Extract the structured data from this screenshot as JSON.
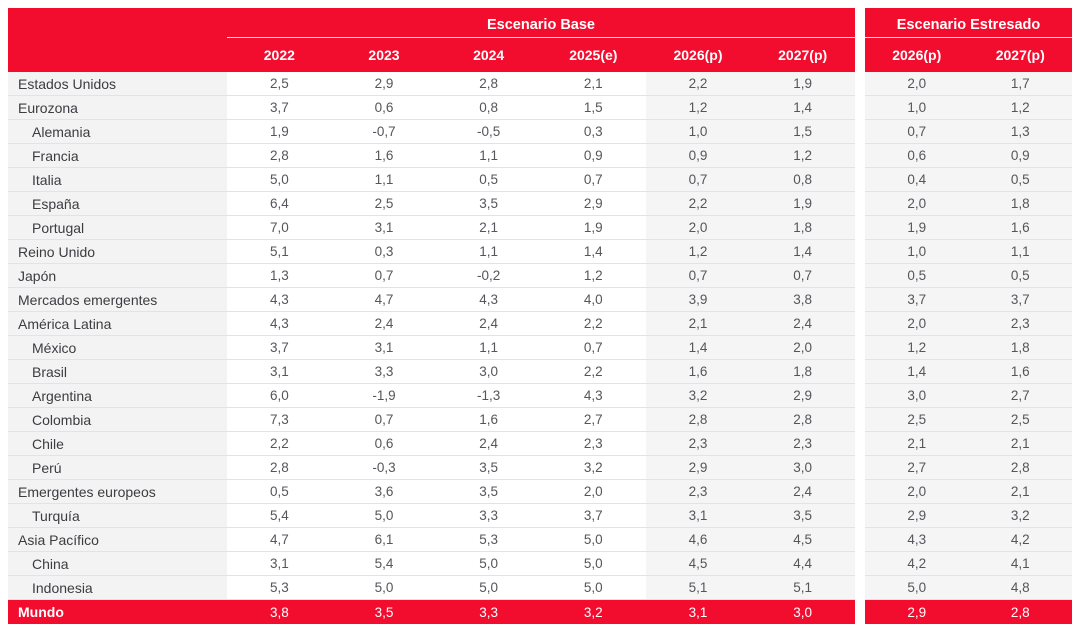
{
  "colors": {
    "accent": "#f20d2f",
    "shaded_column_bg": "#f5f5f5",
    "label_column_bg": "#f3f3f3",
    "row_border": "#e3e3e3",
    "number_text": "#54565b",
    "label_text": "#3c3c41",
    "header_text": "#ffffff"
  },
  "chart_data": {
    "type": "table",
    "title_base": "Escenario Base",
    "title_stressed": "Escenario Estresado",
    "base_columns": [
      "2022",
      "2023",
      "2024",
      "2025(e)",
      "2026(p)",
      "2027(p)"
    ],
    "stressed_columns": [
      "2026(p)",
      "2027(p)"
    ],
    "rows": [
      {
        "label": "Estados Unidos",
        "indent": false,
        "highlight": false,
        "base": [
          "2,5",
          "2,9",
          "2,8",
          "2,1",
          "2,2",
          "1,9"
        ],
        "stressed": [
          "2,0",
          "1,7"
        ]
      },
      {
        "label": "Eurozona",
        "indent": false,
        "highlight": false,
        "base": [
          "3,7",
          "0,6",
          "0,8",
          "1,5",
          "1,2",
          "1,4"
        ],
        "stressed": [
          "1,0",
          "1,2"
        ]
      },
      {
        "label": "Alemania",
        "indent": true,
        "highlight": false,
        "base": [
          "1,9",
          "-0,7",
          "-0,5",
          "0,3",
          "1,0",
          "1,5"
        ],
        "stressed": [
          "0,7",
          "1,3"
        ]
      },
      {
        "label": "Francia",
        "indent": true,
        "highlight": false,
        "base": [
          "2,8",
          "1,6",
          "1,1",
          "0,9",
          "0,9",
          "1,2"
        ],
        "stressed": [
          "0,6",
          "0,9"
        ]
      },
      {
        "label": "Italia",
        "indent": true,
        "highlight": false,
        "base": [
          "5,0",
          "1,1",
          "0,5",
          "0,7",
          "0,7",
          "0,8"
        ],
        "stressed": [
          "0,4",
          "0,5"
        ]
      },
      {
        "label": "España",
        "indent": true,
        "highlight": false,
        "base": [
          "6,4",
          "2,5",
          "3,5",
          "2,9",
          "2,2",
          "1,9"
        ],
        "stressed": [
          "2,0",
          "1,8"
        ]
      },
      {
        "label": "Portugal",
        "indent": true,
        "highlight": false,
        "base": [
          "7,0",
          "3,1",
          "2,1",
          "1,9",
          "2,0",
          "1,8"
        ],
        "stressed": [
          "1,9",
          "1,6"
        ]
      },
      {
        "label": "Reino Unido",
        "indent": false,
        "highlight": false,
        "base": [
          "5,1",
          "0,3",
          "1,1",
          "1,4",
          "1,2",
          "1,4"
        ],
        "stressed": [
          "1,0",
          "1,1"
        ]
      },
      {
        "label": "Japón",
        "indent": false,
        "highlight": false,
        "base": [
          "1,3",
          "0,7",
          "-0,2",
          "1,2",
          "0,7",
          "0,7"
        ],
        "stressed": [
          "0,5",
          "0,5"
        ]
      },
      {
        "label": "Mercados emergentes",
        "indent": false,
        "highlight": false,
        "base": [
          "4,3",
          "4,7",
          "4,3",
          "4,0",
          "3,9",
          "3,8"
        ],
        "stressed": [
          "3,7",
          "3,7"
        ]
      },
      {
        "label": "América Latina",
        "indent": false,
        "highlight": false,
        "base": [
          "4,3",
          "2,4",
          "2,4",
          "2,2",
          "2,1",
          "2,4"
        ],
        "stressed": [
          "2,0",
          "2,3"
        ]
      },
      {
        "label": "México",
        "indent": true,
        "highlight": false,
        "base": [
          "3,7",
          "3,1",
          "1,1",
          "0,7",
          "1,4",
          "2,0"
        ],
        "stressed": [
          "1,2",
          "1,8"
        ]
      },
      {
        "label": "Brasil",
        "indent": true,
        "highlight": false,
        "base": [
          "3,1",
          "3,3",
          "3,0",
          "2,2",
          "1,6",
          "1,8"
        ],
        "stressed": [
          "1,4",
          "1,6"
        ]
      },
      {
        "label": "Argentina",
        "indent": true,
        "highlight": false,
        "base": [
          "6,0",
          "-1,9",
          "-1,3",
          "4,3",
          "3,2",
          "2,9"
        ],
        "stressed": [
          "3,0",
          "2,7"
        ]
      },
      {
        "label": "Colombia",
        "indent": true,
        "highlight": false,
        "base": [
          "7,3",
          "0,7",
          "1,6",
          "2,7",
          "2,8",
          "2,8"
        ],
        "stressed": [
          "2,5",
          "2,5"
        ]
      },
      {
        "label": "Chile",
        "indent": true,
        "highlight": false,
        "base": [
          "2,2",
          "0,6",
          "2,4",
          "2,3",
          "2,3",
          "2,3"
        ],
        "stressed": [
          "2,1",
          "2,1"
        ]
      },
      {
        "label": "Perú",
        "indent": true,
        "highlight": false,
        "base": [
          "2,8",
          "-0,3",
          "3,5",
          "3,2",
          "2,9",
          "3,0"
        ],
        "stressed": [
          "2,7",
          "2,8"
        ]
      },
      {
        "label": "Emergentes europeos",
        "indent": false,
        "highlight": false,
        "base": [
          "0,5",
          "3,6",
          "3,5",
          "2,0",
          "2,3",
          "2,4"
        ],
        "stressed": [
          "2,0",
          "2,1"
        ]
      },
      {
        "label": "Turquía",
        "indent": true,
        "highlight": false,
        "base": [
          "5,4",
          "5,0",
          "3,3",
          "3,7",
          "3,1",
          "3,5"
        ],
        "stressed": [
          "2,9",
          "3,2"
        ]
      },
      {
        "label": "Asia Pacífico",
        "indent": false,
        "highlight": false,
        "base": [
          "4,7",
          "6,1",
          "5,3",
          "5,0",
          "4,6",
          "4,5"
        ],
        "stressed": [
          "4,3",
          "4,2"
        ]
      },
      {
        "label": "China",
        "indent": true,
        "highlight": false,
        "base": [
          "3,1",
          "5,4",
          "5,0",
          "5,0",
          "4,5",
          "4,4"
        ],
        "stressed": [
          "4,2",
          "4,1"
        ]
      },
      {
        "label": "Indonesia",
        "indent": true,
        "highlight": false,
        "base": [
          "5,3",
          "5,0",
          "5,0",
          "5,0",
          "5,1",
          "5,1"
        ],
        "stressed": [
          "5,0",
          "4,8"
        ]
      },
      {
        "label": "Mundo",
        "indent": false,
        "highlight": true,
        "base": [
          "3,8",
          "3,5",
          "3,3",
          "3,2",
          "3,1",
          "3,0"
        ],
        "stressed": [
          "2,9",
          "2,8"
        ]
      }
    ],
    "shaded_base_column_indexes": [
      4,
      5
    ],
    "layout": {
      "grid": "horizontal-row-separators-only",
      "legend_position": "none"
    }
  }
}
